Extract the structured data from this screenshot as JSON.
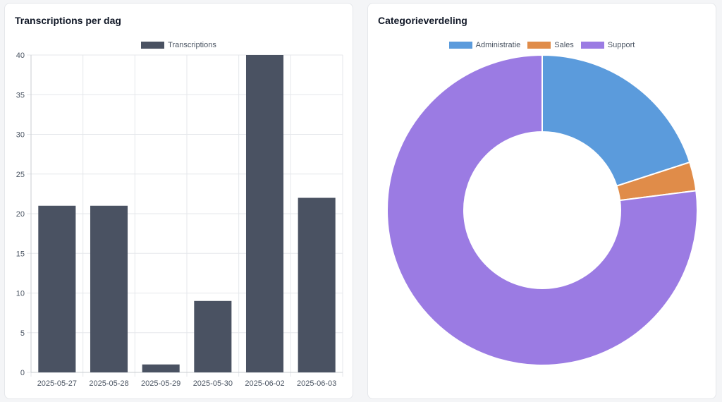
{
  "bar_card": {
    "title": "Transcriptions per dag"
  },
  "donut_card": {
    "title": "Categorieverdeling"
  },
  "chart_data": [
    {
      "type": "bar",
      "title": "Transcriptions per dag",
      "categories": [
        "2025-05-27",
        "2025-05-28",
        "2025-05-29",
        "2025-05-30",
        "2025-06-02",
        "2025-06-03"
      ],
      "series": [
        {
          "name": "Transcriptions",
          "values": [
            21,
            21,
            1,
            9,
            40,
            22
          ],
          "color": "#4a5262"
        }
      ],
      "ylim": [
        0,
        40
      ],
      "yticks": [
        0,
        5,
        10,
        15,
        20,
        25,
        30,
        35,
        40
      ],
      "grid": true,
      "legend": "top-center"
    },
    {
      "type": "pie",
      "title": "Categorieverdeling",
      "donut": true,
      "labels": [
        "Administratie",
        "Sales",
        "Support"
      ],
      "values": [
        20,
        3,
        77
      ],
      "colors": [
        "#5b9bdc",
        "#e08c49",
        "#9b7be3"
      ],
      "legend": "top-center"
    }
  ]
}
